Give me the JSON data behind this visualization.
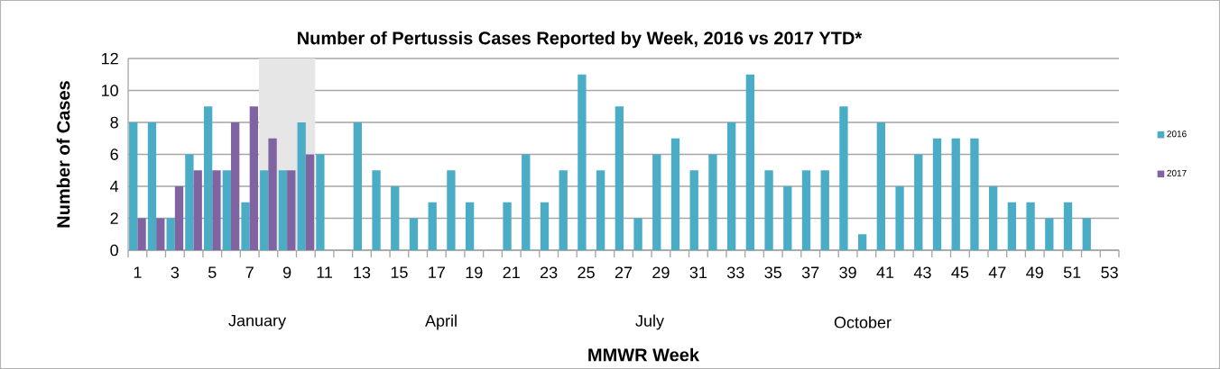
{
  "chart_data": {
    "type": "bar",
    "title": "Number of Pertussis Cases Reported by Week, 2016 vs 2017 YTD*",
    "xlabel": "MMWR Week",
    "ylabel": "Number of Cases",
    "x": [
      1,
      2,
      3,
      4,
      5,
      6,
      7,
      8,
      9,
      10,
      11,
      12,
      13,
      14,
      15,
      16,
      17,
      18,
      19,
      20,
      21,
      22,
      23,
      24,
      25,
      26,
      27,
      28,
      29,
      30,
      31,
      32,
      33,
      34,
      35,
      36,
      37,
      38,
      39,
      40,
      41,
      42,
      43,
      44,
      45,
      46,
      47,
      48,
      49,
      50,
      51,
      52
    ],
    "xlim": [
      0.5,
      53.5
    ],
    "xticks": [
      1,
      3,
      5,
      7,
      9,
      11,
      13,
      15,
      17,
      19,
      21,
      23,
      25,
      27,
      29,
      31,
      33,
      35,
      37,
      39,
      41,
      43,
      45,
      47,
      49,
      51,
      53
    ],
    "ylim": [
      0,
      12
    ],
    "yticks": [
      0,
      2,
      4,
      6,
      8,
      10,
      12
    ],
    "series": [
      {
        "name": "2016",
        "color": "#4bacc6",
        "values": [
          8,
          8,
          2,
          6,
          9,
          5,
          3,
          5,
          5,
          8,
          6,
          0,
          8,
          5,
          4,
          2,
          3,
          5,
          3,
          0,
          3,
          6,
          3,
          5,
          11,
          5,
          9,
          2,
          6,
          7,
          5,
          6,
          8,
          11,
          5,
          4,
          5,
          5,
          9,
          1,
          8,
          4,
          6,
          7,
          7,
          7,
          4,
          3,
          3,
          2,
          3,
          2
        ]
      },
      {
        "name": "2017",
        "color": "#8064a2",
        "values": [
          2,
          2,
          4,
          5,
          5,
          8,
          9,
          7,
          5,
          6,
          null,
          null,
          null,
          null,
          null,
          null,
          null,
          null,
          null,
          null,
          null,
          null,
          null,
          null,
          null,
          null,
          null,
          null,
          null,
          null,
          null,
          null,
          null,
          null,
          null,
          null,
          null,
          null,
          null,
          null,
          null,
          null,
          null,
          null,
          null,
          null,
          null,
          null,
          null,
          null,
          null,
          null
        ]
      }
    ],
    "bands": [
      {
        "axis": "x",
        "from": 7.5,
        "to": 10.5,
        "color": "#e6e6e6"
      }
    ],
    "annotations": [
      "January",
      "April",
      "July",
      "October"
    ],
    "grid": "y",
    "legend": "right"
  }
}
